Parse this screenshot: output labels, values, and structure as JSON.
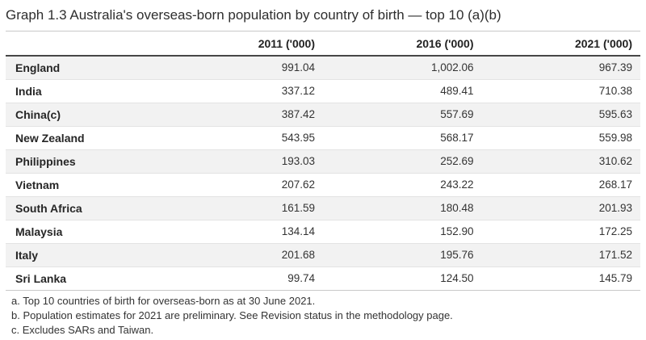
{
  "title": "Graph 1.3 Australia's overseas-born population by country of birth — top 10 (a)(b)",
  "table": {
    "headers": [
      "",
      "2011 ('000)",
      "2016 ('000)",
      "2021 ('000)"
    ],
    "rows": [
      {
        "country": "England",
        "y2011": "991.04",
        "y2016": "1,002.06",
        "y2021": "967.39"
      },
      {
        "country": "India",
        "y2011": "337.12",
        "y2016": "489.41",
        "y2021": "710.38"
      },
      {
        "country": "China(c)",
        "y2011": "387.42",
        "y2016": "557.69",
        "y2021": "595.63"
      },
      {
        "country": "New Zealand",
        "y2011": "543.95",
        "y2016": "568.17",
        "y2021": "559.98"
      },
      {
        "country": "Philippines",
        "y2011": "193.03",
        "y2016": "252.69",
        "y2021": "310.62"
      },
      {
        "country": "Vietnam",
        "y2011": "207.62",
        "y2016": "243.22",
        "y2021": "268.17"
      },
      {
        "country": "South Africa",
        "y2011": "161.59",
        "y2016": "180.48",
        "y2021": "201.93"
      },
      {
        "country": "Malaysia",
        "y2011": "134.14",
        "y2016": "152.90",
        "y2021": "172.25"
      },
      {
        "country": "Italy",
        "y2011": "201.68",
        "y2016": "195.76",
        "y2021": "171.52"
      },
      {
        "country": "Sri Lanka",
        "y2011": "99.74",
        "y2016": "124.50",
        "y2021": "145.79"
      }
    ]
  },
  "footnotes": [
    "a. Top 10 countries of birth for overseas-born as at 30 June 2021.",
    "b. Population estimates for 2021 are preliminary. See Revision status in the methodology page.",
    "c. Excludes SARs and Taiwan."
  ],
  "chart_data": {
    "type": "table",
    "title": "Graph 1.3 Australia's overseas-born population by country of birth — top 10 (a)(b)",
    "categories": [
      "England",
      "India",
      "China(c)",
      "New Zealand",
      "Philippines",
      "Vietnam",
      "South Africa",
      "Malaysia",
      "Italy",
      "Sri Lanka"
    ],
    "series": [
      {
        "name": "2011 ('000)",
        "values": [
          991.04,
          337.12,
          387.42,
          543.95,
          193.03,
          207.62,
          161.59,
          134.14,
          201.68,
          99.74
        ]
      },
      {
        "name": "2016 ('000)",
        "values": [
          1002.06,
          489.41,
          557.69,
          568.17,
          252.69,
          243.22,
          180.48,
          152.9,
          195.76,
          124.5
        ]
      },
      {
        "name": "2021 ('000)",
        "values": [
          967.39,
          710.38,
          595.63,
          559.98,
          310.62,
          268.17,
          201.93,
          172.25,
          171.52,
          145.79
        ]
      }
    ],
    "units": "thousands of persons",
    "notes": [
      "Top 10 countries of birth for overseas-born as at 30 June 2021.",
      "Population estimates for 2021 are preliminary. See Revision status in the methodology page.",
      "Excludes SARs and Taiwan."
    ]
  },
  "colors": {
    "row_stripe": "#f2f2f2",
    "header_border": "#474747",
    "light_border": "#c9c9c9",
    "row_divider": "#e3e3e3",
    "text": "#333333"
  }
}
